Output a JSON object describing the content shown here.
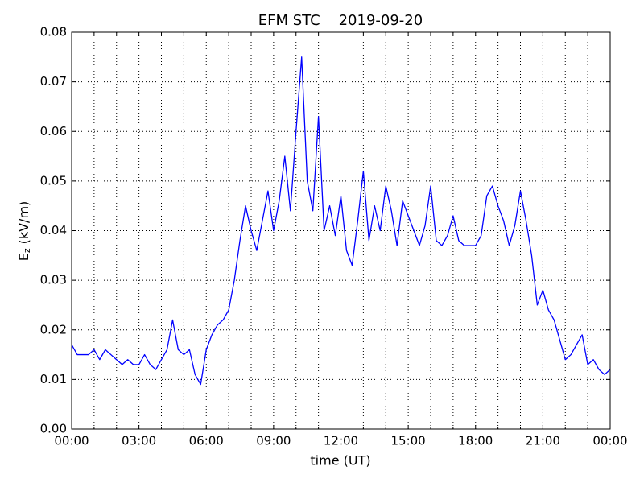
{
  "chart_data": {
    "type": "line",
    "title": "EFM STC    2019-09-20",
    "xlabel": "time (UT)",
    "ylabel": {
      "symbol": "E",
      "subscript": "z",
      "unit": "(kV/m)"
    },
    "color": "#0000ff",
    "x": [
      0,
      0.25,
      0.5,
      0.75,
      1,
      1.25,
      1.5,
      1.75,
      2,
      2.25,
      2.5,
      2.75,
      3,
      3.25,
      3.5,
      3.75,
      4,
      4.25,
      4.5,
      4.75,
      5,
      5.25,
      5.5,
      5.75,
      6,
      6.25,
      6.5,
      6.75,
      7,
      7.25,
      7.5,
      7.75,
      8,
      8.25,
      8.5,
      8.75,
      9,
      9.25,
      9.5,
      9.75,
      10,
      10.25,
      10.5,
      10.75,
      11,
      11.25,
      11.5,
      11.75,
      12,
      12.25,
      12.5,
      12.75,
      13,
      13.25,
      13.5,
      13.75,
      14,
      14.25,
      14.5,
      14.75,
      15,
      15.25,
      15.5,
      15.75,
      16,
      16.25,
      16.5,
      16.75,
      17,
      17.25,
      17.5,
      17.75,
      18,
      18.25,
      18.5,
      18.75,
      19,
      19.25,
      19.5,
      19.75,
      20,
      20.25,
      20.5,
      20.75,
      21,
      21.25,
      21.5,
      21.75,
      22,
      22.25,
      22.5,
      22.75,
      23,
      23.25,
      23.5,
      23.75,
      24
    ],
    "values": [
      0.017,
      0.015,
      0.015,
      0.015,
      0.016,
      0.014,
      0.016,
      0.015,
      0.014,
      0.013,
      0.014,
      0.013,
      0.013,
      0.015,
      0.013,
      0.012,
      0.014,
      0.016,
      0.022,
      0.016,
      0.015,
      0.016,
      0.011,
      0.009,
      0.016,
      0.019,
      0.021,
      0.022,
      0.024,
      0.03,
      0.038,
      0.045,
      0.04,
      0.036,
      0.042,
      0.048,
      0.04,
      0.046,
      0.055,
      0.044,
      0.06,
      0.075,
      0.05,
      0.044,
      0.063,
      0.04,
      0.045,
      0.039,
      0.047,
      0.036,
      0.033,
      0.042,
      0.052,
      0.038,
      0.045,
      0.04,
      0.049,
      0.044,
      0.037,
      0.046,
      0.043,
      0.04,
      0.037,
      0.041,
      0.049,
      0.038,
      0.037,
      0.039,
      0.043,
      0.038,
      0.037,
      0.037,
      0.037,
      0.039,
      0.047,
      0.049,
      0.045,
      0.042,
      0.037,
      0.041,
      0.048,
      0.042,
      0.035,
      0.025,
      0.028,
      0.024,
      0.022,
      0.018,
      0.014,
      0.015,
      0.017,
      0.019,
      0.013,
      0.014,
      0.012,
      0.011,
      0.012
    ],
    "xlim": [
      0,
      24
    ],
    "xticks": [
      {
        "value": 0,
        "label": "00:00"
      },
      {
        "value": 3,
        "label": "03:00"
      },
      {
        "value": 6,
        "label": "06:00"
      },
      {
        "value": 9,
        "label": "09:00"
      },
      {
        "value": 12,
        "label": "12:00"
      },
      {
        "value": 15,
        "label": "15:00"
      },
      {
        "value": 18,
        "label": "18:00"
      },
      {
        "value": 21,
        "label": "21:00"
      },
      {
        "value": 24,
        "label": "00:00"
      }
    ],
    "xminorticks": [
      1,
      2,
      4,
      5,
      7,
      8,
      10,
      11,
      13,
      14,
      16,
      17,
      19,
      20,
      22,
      23
    ],
    "ylim": [
      0,
      0.08
    ],
    "yticks": [
      {
        "value": 0,
        "label": "0.00"
      },
      0.01,
      0.02,
      0.03,
      0.04,
      0.05,
      0.06,
      0.07,
      0.08
    ],
    "grid": true
  }
}
